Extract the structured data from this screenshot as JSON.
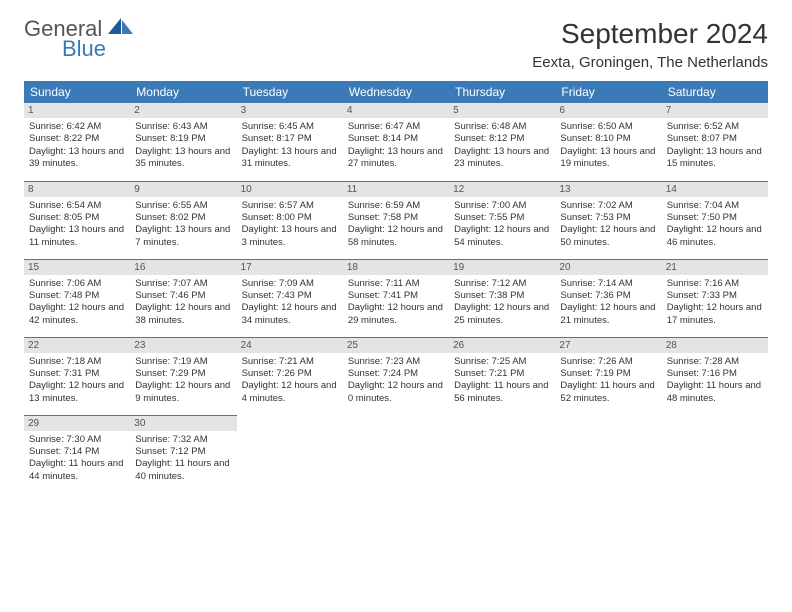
{
  "brand": {
    "line1": "General",
    "line2": "Blue"
  },
  "title": "September 2024",
  "location": "Eexta, Groningen, The Netherlands",
  "theme": {
    "header_bg": "#3a7ab8",
    "header_fg": "#ffffff",
    "daynum_bg": "#e4e4e4",
    "daynum_fg": "#555555",
    "border": "#3a7ab8",
    "page_bg": "#ffffff",
    "text": "#333333",
    "title_fontsize": 28,
    "location_fontsize": 15,
    "header_fontsize": 12,
    "cell_fontsize": 9.5
  },
  "dayNames": [
    "Sunday",
    "Monday",
    "Tuesday",
    "Wednesday",
    "Thursday",
    "Friday",
    "Saturday"
  ],
  "weeks": [
    [
      {
        "n": 1,
        "sr": "6:42 AM",
        "ss": "8:22 PM",
        "dl": "13 hours and 39 minutes."
      },
      {
        "n": 2,
        "sr": "6:43 AM",
        "ss": "8:19 PM",
        "dl": "13 hours and 35 minutes."
      },
      {
        "n": 3,
        "sr": "6:45 AM",
        "ss": "8:17 PM",
        "dl": "13 hours and 31 minutes."
      },
      {
        "n": 4,
        "sr": "6:47 AM",
        "ss": "8:14 PM",
        "dl": "13 hours and 27 minutes."
      },
      {
        "n": 5,
        "sr": "6:48 AM",
        "ss": "8:12 PM",
        "dl": "13 hours and 23 minutes."
      },
      {
        "n": 6,
        "sr": "6:50 AM",
        "ss": "8:10 PM",
        "dl": "13 hours and 19 minutes."
      },
      {
        "n": 7,
        "sr": "6:52 AM",
        "ss": "8:07 PM",
        "dl": "13 hours and 15 minutes."
      }
    ],
    [
      {
        "n": 8,
        "sr": "6:54 AM",
        "ss": "8:05 PM",
        "dl": "13 hours and 11 minutes."
      },
      {
        "n": 9,
        "sr": "6:55 AM",
        "ss": "8:02 PM",
        "dl": "13 hours and 7 minutes."
      },
      {
        "n": 10,
        "sr": "6:57 AM",
        "ss": "8:00 PM",
        "dl": "13 hours and 3 minutes."
      },
      {
        "n": 11,
        "sr": "6:59 AM",
        "ss": "7:58 PM",
        "dl": "12 hours and 58 minutes."
      },
      {
        "n": 12,
        "sr": "7:00 AM",
        "ss": "7:55 PM",
        "dl": "12 hours and 54 minutes."
      },
      {
        "n": 13,
        "sr": "7:02 AM",
        "ss": "7:53 PM",
        "dl": "12 hours and 50 minutes."
      },
      {
        "n": 14,
        "sr": "7:04 AM",
        "ss": "7:50 PM",
        "dl": "12 hours and 46 minutes."
      }
    ],
    [
      {
        "n": 15,
        "sr": "7:06 AM",
        "ss": "7:48 PM",
        "dl": "12 hours and 42 minutes."
      },
      {
        "n": 16,
        "sr": "7:07 AM",
        "ss": "7:46 PM",
        "dl": "12 hours and 38 minutes."
      },
      {
        "n": 17,
        "sr": "7:09 AM",
        "ss": "7:43 PM",
        "dl": "12 hours and 34 minutes."
      },
      {
        "n": 18,
        "sr": "7:11 AM",
        "ss": "7:41 PM",
        "dl": "12 hours and 29 minutes."
      },
      {
        "n": 19,
        "sr": "7:12 AM",
        "ss": "7:38 PM",
        "dl": "12 hours and 25 minutes."
      },
      {
        "n": 20,
        "sr": "7:14 AM",
        "ss": "7:36 PM",
        "dl": "12 hours and 21 minutes."
      },
      {
        "n": 21,
        "sr": "7:16 AM",
        "ss": "7:33 PM",
        "dl": "12 hours and 17 minutes."
      }
    ],
    [
      {
        "n": 22,
        "sr": "7:18 AM",
        "ss": "7:31 PM",
        "dl": "12 hours and 13 minutes."
      },
      {
        "n": 23,
        "sr": "7:19 AM",
        "ss": "7:29 PM",
        "dl": "12 hours and 9 minutes."
      },
      {
        "n": 24,
        "sr": "7:21 AM",
        "ss": "7:26 PM",
        "dl": "12 hours and 4 minutes."
      },
      {
        "n": 25,
        "sr": "7:23 AM",
        "ss": "7:24 PM",
        "dl": "12 hours and 0 minutes."
      },
      {
        "n": 26,
        "sr": "7:25 AM",
        "ss": "7:21 PM",
        "dl": "11 hours and 56 minutes."
      },
      {
        "n": 27,
        "sr": "7:26 AM",
        "ss": "7:19 PM",
        "dl": "11 hours and 52 minutes."
      },
      {
        "n": 28,
        "sr": "7:28 AM",
        "ss": "7:16 PM",
        "dl": "11 hours and 48 minutes."
      }
    ],
    [
      {
        "n": 29,
        "sr": "7:30 AM",
        "ss": "7:14 PM",
        "dl": "11 hours and 44 minutes."
      },
      {
        "n": 30,
        "sr": "7:32 AM",
        "ss": "7:12 PM",
        "dl": "11 hours and 40 minutes."
      },
      null,
      null,
      null,
      null,
      null
    ]
  ],
  "labels": {
    "sunrise": "Sunrise:",
    "sunset": "Sunset:",
    "daylight": "Daylight:"
  }
}
